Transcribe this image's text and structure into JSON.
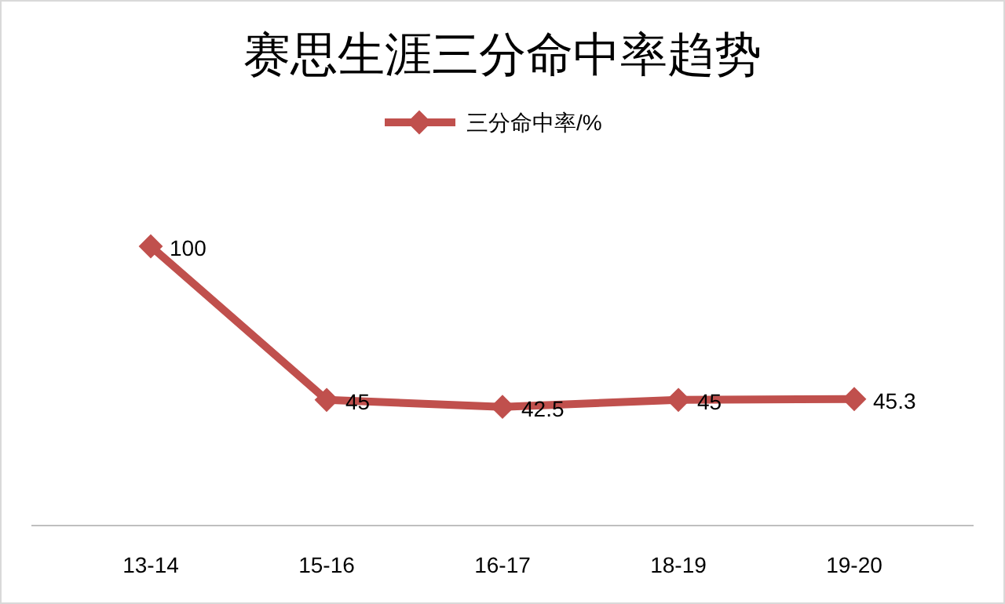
{
  "chart_data": {
    "type": "line",
    "title": "赛思生涯三分命中率趋势",
    "categories": [
      "13-14",
      "15-16",
      "16-17",
      "18-19",
      "19-20"
    ],
    "series": [
      {
        "name": "三分命中率/%",
        "color": "#c0504d",
        "values": [
          100,
          45,
          42.5,
          45,
          45.3
        ]
      }
    ],
    "data_labels": true,
    "legend": "top",
    "marker": "diamond"
  }
}
